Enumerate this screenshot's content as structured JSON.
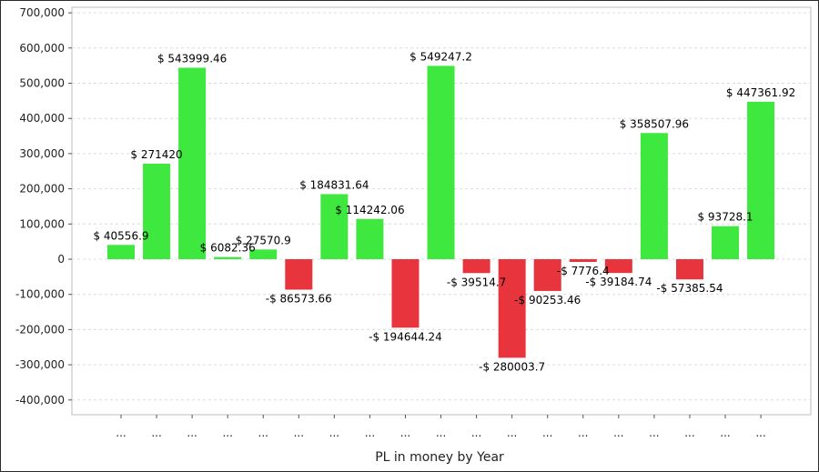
{
  "chart_data": {
    "type": "bar",
    "xlabel": "PL in money by Year",
    "ylabel": "",
    "ylim": [
      -450000,
      700000
    ],
    "yticks": [
      700000,
      600000,
      500000,
      400000,
      300000,
      200000,
      100000,
      0,
      -100000,
      -200000,
      -300000,
      -400000
    ],
    "ytick_labels": [
      "700,000",
      "600,000",
      "500,000",
      "400,000",
      "300,000",
      "200,000",
      "100,000",
      "0",
      "-100,000",
      "-200,000",
      "-300,000",
      "-400,000"
    ],
    "grid": true,
    "legend": "none",
    "positive_color": "#3ee83e",
    "negative_color": "#e8353d",
    "categories": [
      "...",
      "...",
      "...",
      "...",
      "...",
      "...",
      "...",
      "...",
      "...",
      "...",
      "...",
      "...",
      "...",
      "...",
      "...",
      "...",
      "...",
      "...",
      "..."
    ],
    "values": [
      40556.9,
      271420,
      543999.46,
      6082.36,
      27570.9,
      -86573.66,
      184831.64,
      114242.06,
      -194644.24,
      549247.2,
      -39514.7,
      -280003.7,
      -90253.46,
      -7776.4,
      -39184.74,
      358507.96,
      -57385.54,
      93728.1,
      447361.92
    ],
    "data_labels": [
      "$ 40556.9",
      "$ 271420",
      "$ 543999.46",
      "$ 6082.36",
      "$ 27570.9",
      "-$ 86573.66",
      "$ 184831.64",
      "$ 114242.06",
      "-$ 194644.24",
      "$ 549247.2",
      "-$ 39514.7",
      "-$ 280003.7",
      "-$ 90253.46",
      "-$ 7776.4",
      "-$ 39184.74",
      "$ 358507.96",
      "-$ 57385.54",
      "$ 93728.1",
      "$ 447361.92"
    ]
  }
}
